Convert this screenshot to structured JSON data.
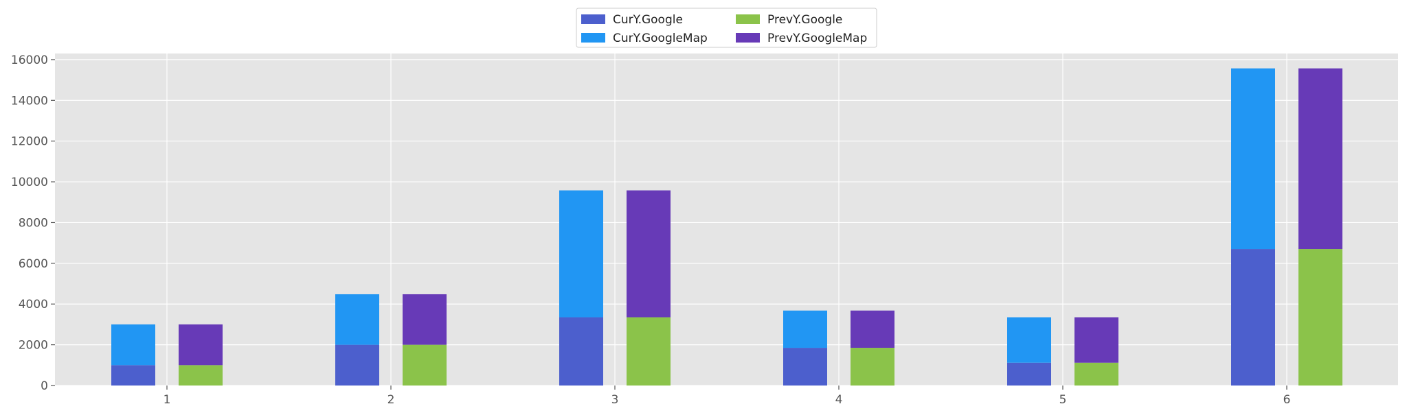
{
  "chart_data": {
    "type": "bar",
    "stacked": true,
    "grouped": true,
    "categories": [
      "1",
      "2",
      "3",
      "4",
      "5",
      "6"
    ],
    "groups": [
      {
        "group": "CurY",
        "series": [
          {
            "name": "CurY.Google",
            "color": "#4c5fcd",
            "values": [
              1000,
              2000,
              3350,
              1850,
              1120,
              6700
            ]
          },
          {
            "name": "CurY.GoogleMap",
            "color": "#2196f3",
            "values": [
              2000,
              2480,
              6230,
              1830,
              2230,
              8870
            ]
          }
        ]
      },
      {
        "group": "PrevY",
        "series": [
          {
            "name": "PrevY.Google",
            "color": "#8bc34a",
            "values": [
              1000,
              2000,
              3350,
              1850,
              1120,
              6700
            ]
          },
          {
            "name": "PrevY.GoogleMap",
            "color": "#673ab7",
            "values": [
              2000,
              2480,
              6230,
              1830,
              2230,
              8870
            ]
          }
        ]
      }
    ],
    "yticks": [
      "0",
      "2000",
      "4000",
      "6000",
      "8000",
      "10000",
      "12000",
      "14000",
      "16000"
    ],
    "ylim": [
      0,
      16300
    ],
    "grid": true,
    "legend": {
      "placement": "top-center",
      "columns": 2,
      "entries": [
        "CurY.Google",
        "CurY.GoogleMap",
        "PrevY.Google",
        "PrevY.GoogleMap"
      ]
    },
    "colors": {
      "background": "#e5e5e5",
      "grid": "#ffffff"
    }
  }
}
